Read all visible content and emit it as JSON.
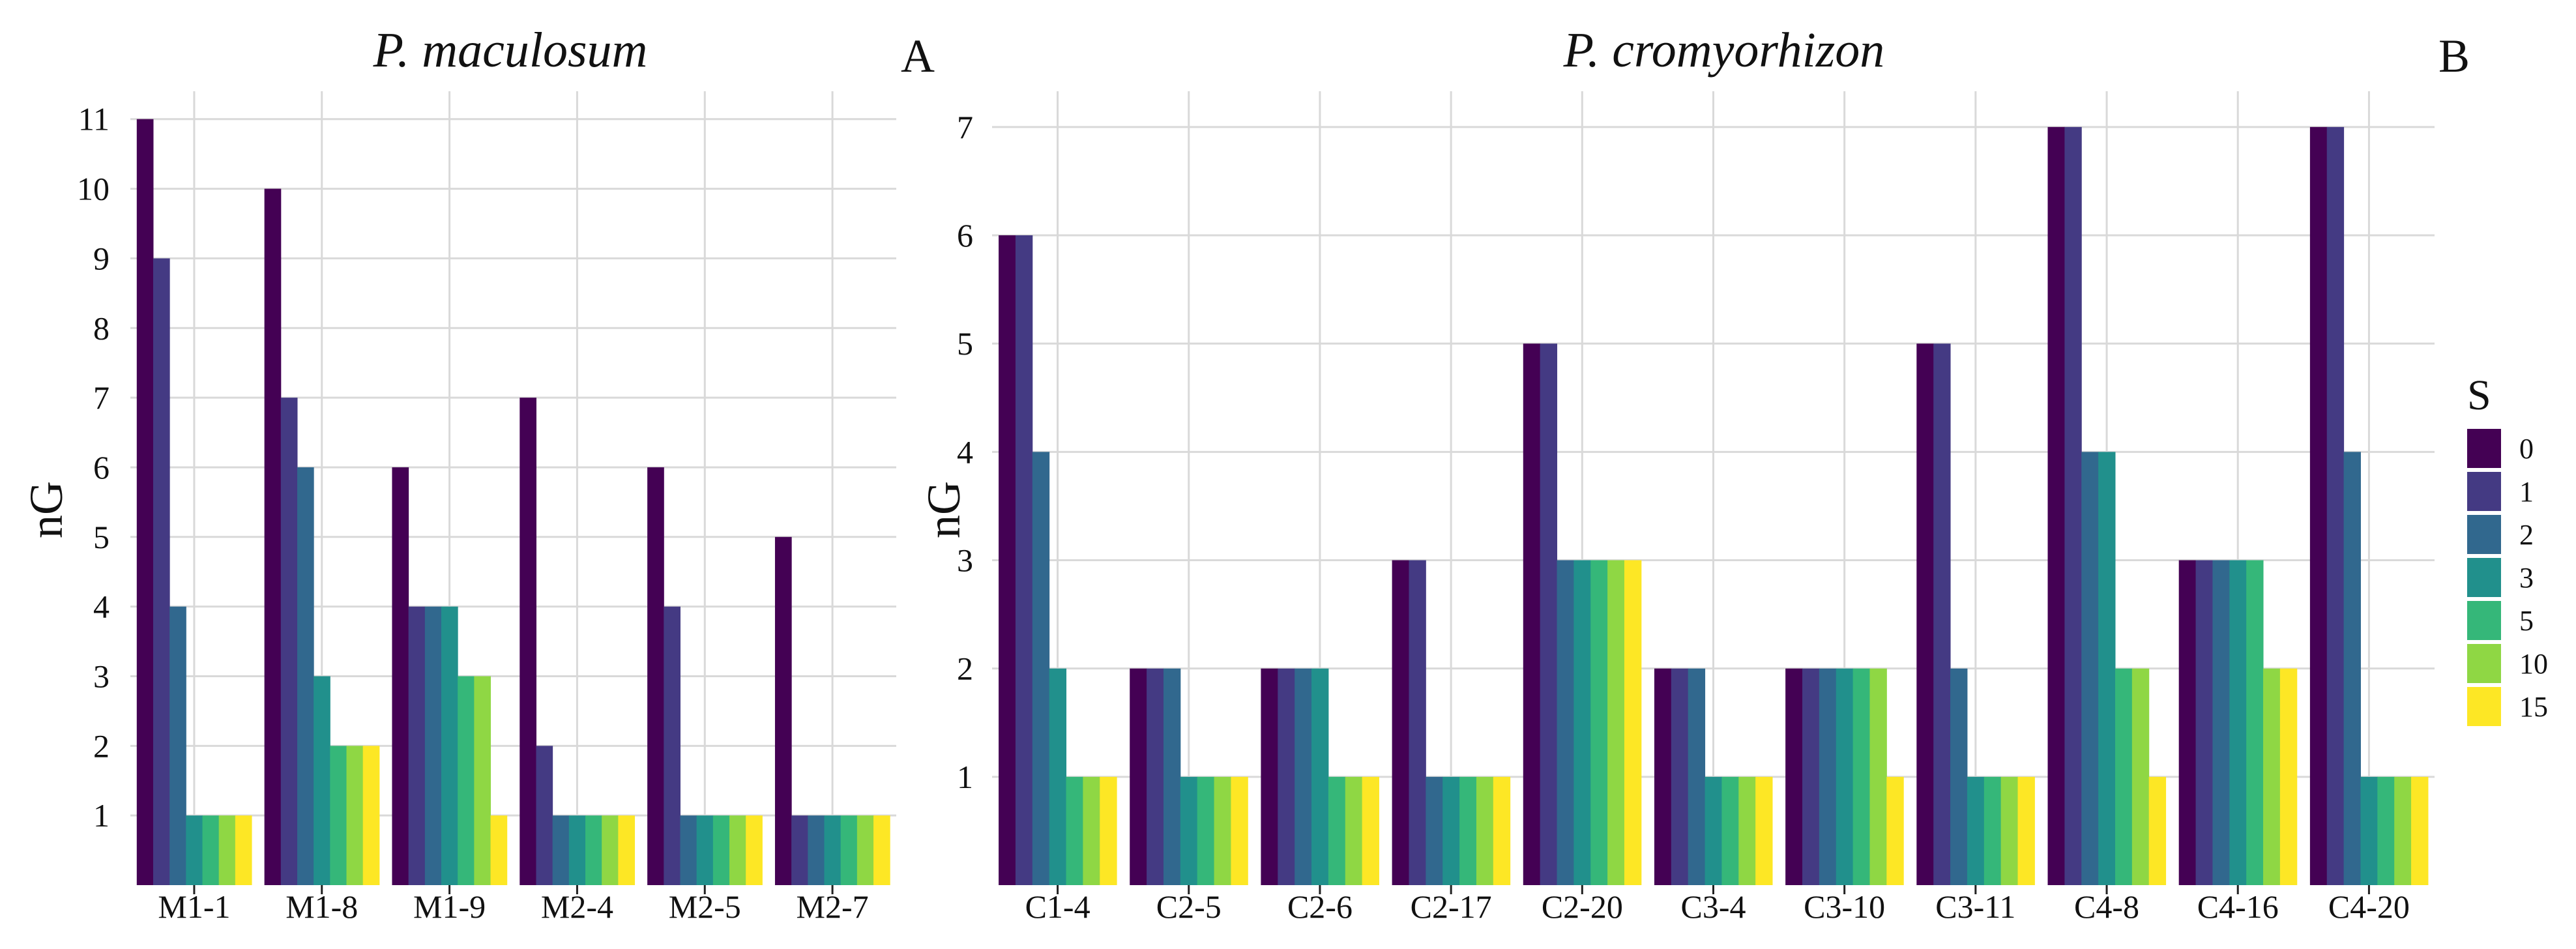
{
  "colors": {
    "0": "#440154",
    "1": "#443A83",
    "2": "#31688E",
    "3": "#21908C",
    "5": "#35B779",
    "10": "#8FD744",
    "15": "#FDE725",
    "grid": "#d9d9d9",
    "text": "#111111"
  },
  "legend": {
    "title": "S",
    "items": [
      "0",
      "1",
      "2",
      "3",
      "5",
      "10",
      "15"
    ]
  },
  "chart_data": [
    {
      "type": "bar",
      "title": "P. maculosum",
      "panel_label": "A",
      "xlabel": "",
      "ylabel": "nG",
      "ylim": [
        0,
        11.4
      ],
      "yticks": [
        1,
        2,
        3,
        4,
        5,
        6,
        7,
        8,
        9,
        10,
        11
      ],
      "grid": true,
      "categories": [
        "M1-1",
        "M1-8",
        "M1-9",
        "M2-4",
        "M2-5",
        "M2-7"
      ],
      "series": [
        {
          "name": "0",
          "values": [
            11,
            10,
            6,
            7,
            6,
            5
          ]
        },
        {
          "name": "1",
          "values": [
            9,
            7,
            4,
            2,
            4,
            1
          ]
        },
        {
          "name": "2",
          "values": [
            4,
            6,
            4,
            1,
            1,
            1
          ]
        },
        {
          "name": "3",
          "values": [
            1,
            3,
            4,
            1,
            1,
            1
          ]
        },
        {
          "name": "5",
          "values": [
            1,
            2,
            3,
            1,
            1,
            1
          ]
        },
        {
          "name": "10",
          "values": [
            1,
            2,
            3,
            1,
            1,
            1
          ]
        },
        {
          "name": "15",
          "values": [
            1,
            2,
            1,
            1,
            1,
            1
          ]
        }
      ]
    },
    {
      "type": "bar",
      "title": "P. cromyorhizon",
      "panel_label": "B",
      "xlabel": "",
      "ylabel": "nG",
      "ylim": [
        0,
        7.33
      ],
      "yticks": [
        1,
        2,
        3,
        4,
        5,
        6,
        7
      ],
      "grid": true,
      "categories": [
        "C1-4",
        "C2-5",
        "C2-6",
        "C2-17",
        "C2-20",
        "C3-4",
        "C3-10",
        "C3-11",
        "C4-8",
        "C4-16",
        "C4-20"
      ],
      "series": [
        {
          "name": "0",
          "values": [
            6,
            2,
            2,
            3,
            5,
            2,
            2,
            5,
            7,
            3,
            7
          ]
        },
        {
          "name": "1",
          "values": [
            6,
            2,
            2,
            3,
            5,
            2,
            2,
            5,
            7,
            3,
            7
          ]
        },
        {
          "name": "2",
          "values": [
            4,
            2,
            2,
            1,
            3,
            2,
            2,
            2,
            4,
            3,
            4
          ]
        },
        {
          "name": "3",
          "values": [
            2,
            1,
            2,
            1,
            3,
            1,
            2,
            1,
            4,
            3,
            1
          ]
        },
        {
          "name": "5",
          "values": [
            1,
            1,
            1,
            1,
            3,
            1,
            2,
            1,
            2,
            3,
            1
          ]
        },
        {
          "name": "10",
          "values": [
            1,
            1,
            1,
            1,
            3,
            1,
            2,
            1,
            2,
            2,
            1
          ]
        },
        {
          "name": "15",
          "values": [
            1,
            1,
            1,
            1,
            3,
            1,
            1,
            1,
            1,
            2,
            1
          ]
        }
      ]
    }
  ]
}
